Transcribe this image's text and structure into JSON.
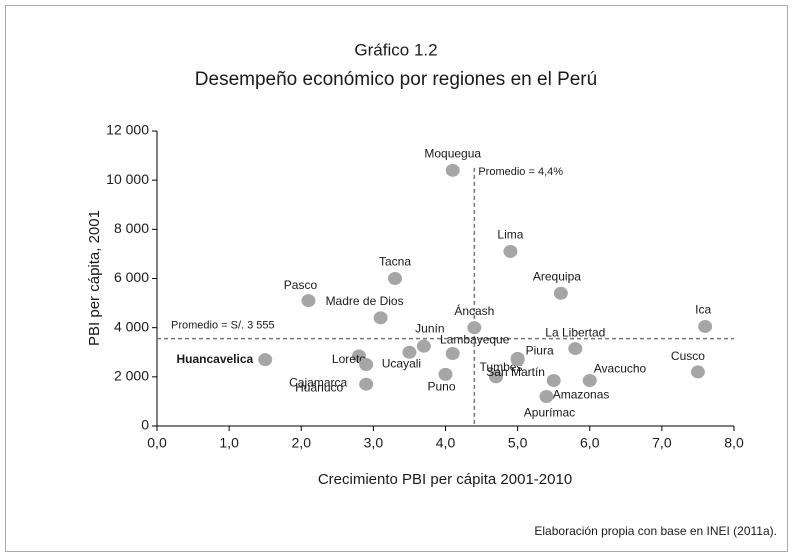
{
  "chart_data": {
    "type": "scatter",
    "title": "Gráfico 1.2",
    "subtitle": "Desempeño económico por regiones en el Perú",
    "xlabel": "Crecimiento PBI per cápita 2001-2010",
    "ylabel": "PBI per cápita, 2001",
    "note": "Elaboración propia con base en INEI (2011a).",
    "color": "#a6a6a6",
    "labels": [
      "Moquegua",
      "Lima",
      "Arequipa",
      "Tacna",
      "Pasco",
      "Madre de Dios",
      "Áncash",
      "Ica",
      "Junín",
      "La Libertad",
      "Ucayali",
      "Lambayeque",
      "Tumbes",
      "Loreto",
      "Huancavelica",
      "Cajamarca",
      "Piura",
      "Cusco",
      "Puno",
      "Huánuco",
      "Avacucho",
      "Amazonas",
      "San Martín",
      "Apurímac"
    ],
    "x": [
      4.1,
      4.9,
      5.6,
      3.3,
      2.1,
      3.1,
      4.4,
      7.6,
      3.7,
      5.8,
      3.5,
      4.1,
      4.7,
      2.8,
      1.5,
      2.9,
      5.0,
      7.5,
      4.0,
      2.9,
      6.0,
      5.5,
      5.0,
      5.4
    ],
    "values": [
      10400,
      7100,
      5400,
      6000,
      5100,
      4400,
      4000,
      4050,
      3250,
      3150,
      3000,
      2950,
      2000,
      2850,
      2700,
      2500,
      2750,
      2200,
      2100,
      1700,
      1850,
      1850,
      2700,
      1200
    ],
    "highlight": "Huancavelica",
    "xlim": [
      0,
      8
    ],
    "ylim": [
      0,
      12000
    ],
    "xticks": [
      {
        "value": 0,
        "label": "0,0"
      },
      {
        "value": 1,
        "label": "1,0"
      },
      {
        "value": 2,
        "label": "2,0"
      },
      {
        "value": 3,
        "label": "3,0"
      },
      {
        "value": 4,
        "label": "4,0"
      },
      {
        "value": 5,
        "label": "5,0"
      },
      {
        "value": 6,
        "label": "6,0"
      },
      {
        "value": 7,
        "label": "7,0"
      },
      {
        "value": 8,
        "label": "8,0"
      }
    ],
    "yticks": [
      0,
      {
        "value": 2000,
        "label": "2 000"
      },
      {
        "value": 4000,
        "label": "4 000"
      },
      {
        "value": 6000,
        "label": "6 000"
      },
      {
        "value": 8000,
        "label": "8 000"
      },
      {
        "value": 10000,
        "label": "10 000"
      },
      {
        "value": 12000,
        "label": "12 000"
      }
    ],
    "x_reference": {
      "value": 4.4,
      "label": "Promedio = 4,4%"
    },
    "y_reference": {
      "value": 3555,
      "label": "Promedio = S/. 3 555"
    }
  }
}
